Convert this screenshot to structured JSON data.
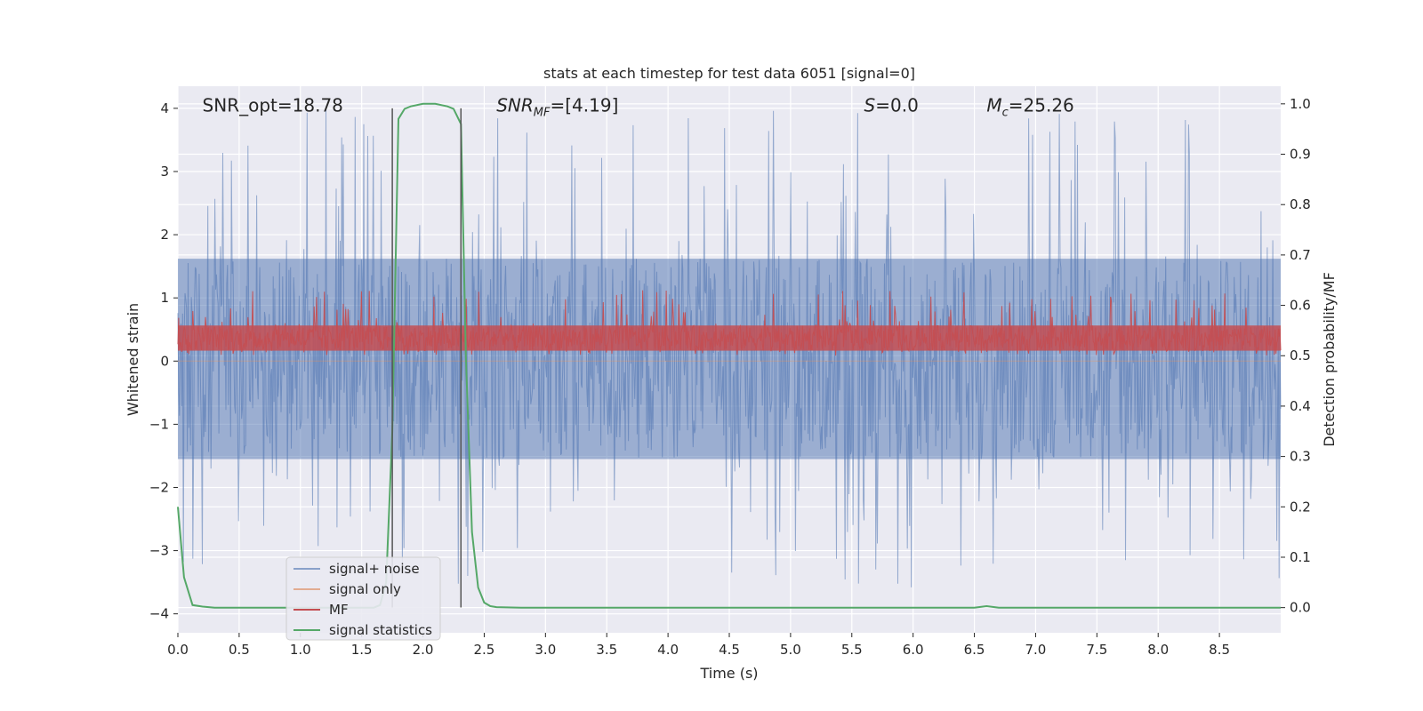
{
  "chart_data": {
    "type": "line",
    "title": "stats at each timestep for test data 6051 [signal=0]",
    "xlabel": "Time (s)",
    "ylabel": "Whitened strain",
    "y2label": "Detection probability/MF",
    "xlim": [
      0,
      9.0
    ],
    "ylim": [
      -4.3,
      4.35
    ],
    "y2lim": [
      -0.05,
      1.035
    ],
    "xticks": [
      0.0,
      0.5,
      1.0,
      1.5,
      2.0,
      2.5,
      3.0,
      3.5,
      4.0,
      4.5,
      5.0,
      5.5,
      6.0,
      6.5,
      7.0,
      7.5,
      8.0,
      8.5
    ],
    "xtick_labels": [
      "0.0",
      "0.5",
      "1.0",
      "1.5",
      "2.0",
      "2.5",
      "3.0",
      "3.5",
      "4.0",
      "4.5",
      "5.0",
      "5.5",
      "6.0",
      "6.5",
      "7.0",
      "7.5",
      "8.0",
      "8.5"
    ],
    "yticks": [
      -4,
      -3,
      -2,
      -1,
      0,
      1,
      2,
      3,
      4
    ],
    "ytick_labels": [
      "−4",
      "−3",
      "−2",
      "−1",
      "0",
      "1",
      "2",
      "3",
      "4"
    ],
    "y2ticks": [
      0.0,
      0.1,
      0.2,
      0.3,
      0.4,
      0.5,
      0.6,
      0.7,
      0.8,
      0.9,
      1.0
    ],
    "y2tick_labels": [
      "0.0",
      "0.1",
      "0.2",
      "0.3",
      "0.4",
      "0.5",
      "0.6",
      "0.7",
      "0.8",
      "0.9",
      "1.0"
    ],
    "grid": true,
    "legend_position": "lower-left",
    "annotations": [
      {
        "text": "SNR_opt=18.78",
        "x": 0.2,
        "y": 4.05,
        "italic": false
      },
      {
        "text": "SNR_MF=[4.19]",
        "x": 2.6,
        "y": 4.05,
        "italic": true
      },
      {
        "text": "S=0.0",
        "x": 5.6,
        "y": 4.05,
        "italic": true
      },
      {
        "text": "M_c=25.26",
        "x": 6.6,
        "y": 4.05,
        "italic": true
      }
    ],
    "vlines": [
      {
        "x": 1.75,
        "ymin": -3.9,
        "ymax": 4.0,
        "color": "#555555"
      },
      {
        "x": 2.31,
        "ymin": -3.9,
        "ymax": 4.0,
        "color": "#555555"
      }
    ],
    "series": [
      {
        "name": "signal+ noise",
        "color": "#4c72b0",
        "axis": "left",
        "kind": "noise",
        "band_low": -1.55,
        "band_high": 1.62,
        "peak_max": 4.0,
        "peak_min": -3.6
      },
      {
        "name": "signal only",
        "color": "#dd8452",
        "axis": "left",
        "kind": "flat",
        "value": 0.0
      },
      {
        "name": "MF",
        "color": "#c44e52",
        "axis": "right",
        "kind": "noise",
        "band_low": 0.51,
        "band_high": 0.56,
        "peak_max": 0.63,
        "peak_min": 0.5
      },
      {
        "name": "signal statistics",
        "color": "#55a868",
        "axis": "right",
        "kind": "line",
        "x": [
          0.0,
          0.05,
          0.12,
          0.2,
          0.3,
          0.5,
          1.0,
          1.5,
          1.6,
          1.65,
          1.7,
          1.75,
          1.8,
          1.85,
          1.9,
          2.0,
          2.1,
          2.2,
          2.25,
          2.31,
          2.35,
          2.4,
          2.45,
          2.5,
          2.55,
          2.6,
          2.8,
          3.0,
          4.0,
          5.0,
          6.0,
          6.5,
          6.6,
          6.7,
          7.0,
          8.0,
          9.0
        ],
        "y": [
          0.2,
          0.06,
          0.005,
          0.002,
          0.0,
          0.0,
          0.0,
          0.0,
          0.0,
          0.005,
          0.05,
          0.35,
          0.97,
          0.99,
          0.995,
          1.0,
          1.0,
          0.995,
          0.99,
          0.96,
          0.5,
          0.15,
          0.04,
          0.01,
          0.003,
          0.001,
          0.0,
          0.0,
          0.0,
          0.0,
          0.0,
          0.0,
          0.003,
          0.0,
          0.0,
          0.0,
          0.0
        ]
      }
    ]
  }
}
